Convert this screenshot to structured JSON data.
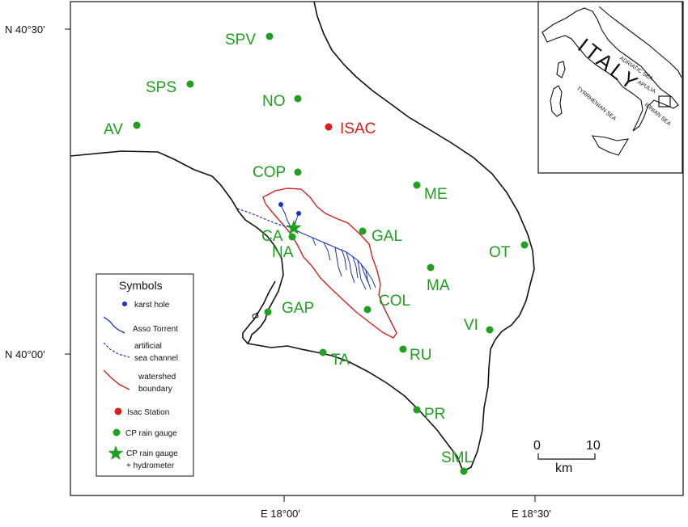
{
  "axes": {
    "lat_top": "N 40°30'",
    "lat_bottom": "N 40°00'",
    "lon_left": "E 18°00'",
    "lon_right": "E 18°30'"
  },
  "stations": [
    {
      "id": "SPV",
      "label": "SPV",
      "type": "cp_rain_gauge"
    },
    {
      "id": "SPS",
      "label": "SPS",
      "type": "cp_rain_gauge"
    },
    {
      "id": "NO",
      "label": "NO",
      "type": "cp_rain_gauge"
    },
    {
      "id": "AV",
      "label": "AV",
      "type": "cp_rain_gauge"
    },
    {
      "id": "ISAC",
      "label": "ISAC",
      "type": "isac_station"
    },
    {
      "id": "COP",
      "label": "COP",
      "type": "cp_rain_gauge"
    },
    {
      "id": "ME",
      "label": "ME",
      "type": "cp_rain_gauge"
    },
    {
      "id": "GAL",
      "label": "GAL",
      "type": "cp_rain_gauge"
    },
    {
      "id": "CA",
      "label": "CA",
      "type": "cp_rain_gauge_hydrometer"
    },
    {
      "id": "NA",
      "label": "NA",
      "type": "cp_rain_gauge"
    },
    {
      "id": "OT",
      "label": "OT",
      "type": "cp_rain_gauge"
    },
    {
      "id": "MA",
      "label": "MA",
      "type": "cp_rain_gauge"
    },
    {
      "id": "GAP",
      "label": "GAP",
      "type": "cp_rain_gauge"
    },
    {
      "id": "COL",
      "label": "COL",
      "type": "cp_rain_gauge"
    },
    {
      "id": "VI",
      "label": "VI",
      "type": "cp_rain_gauge"
    },
    {
      "id": "TA",
      "label": "TA",
      "type": "cp_rain_gauge"
    },
    {
      "id": "RU",
      "label": "RU",
      "type": "cp_rain_gauge"
    },
    {
      "id": "PR",
      "label": "PR",
      "type": "cp_rain_gauge"
    },
    {
      "id": "SML",
      "label": "SML",
      "type": "cp_rain_gauge"
    }
  ],
  "legend": {
    "title": "Symbols",
    "items": [
      {
        "label": "karst hole"
      },
      {
        "label": "Asso Torrent"
      },
      {
        "label_line1": "artificial",
        "label_line2": "sea channel"
      },
      {
        "label_line1": "watershed",
        "label_line2": "boundary"
      },
      {
        "label": "Isac Station"
      },
      {
        "label": "CP rain gauge"
      },
      {
        "label_line1": "CP rain gauge",
        "label_line2": "+ hydrometer"
      }
    ]
  },
  "scale_bar": {
    "start": "0",
    "end": "10",
    "unit": "km"
  },
  "inset": {
    "country": "ITALY",
    "labels": [
      "ADRIATIC SEA",
      "APULIA",
      "TYRRHENIAN SEA",
      "IONIAN SEA"
    ]
  },
  "colors": {
    "rain_gauge": "#1fa01f",
    "isac_station": "#e01b1b",
    "torrent": "#1a2fc8",
    "watershed": "#d42020",
    "karst_hole": "#1a2fc8"
  }
}
